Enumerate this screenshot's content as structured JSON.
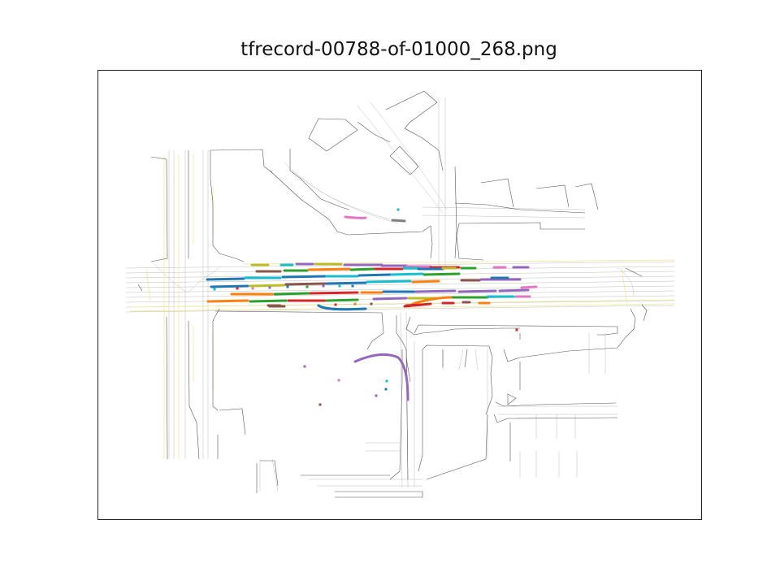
{
  "figure": {
    "title": "tfrecord-00788-of-01000_268.png"
  },
  "map_layers": {
    "road_edge_color": "#555555",
    "lane_color": "#bdbdbd",
    "road_line_color": "#efe58a"
  },
  "agent_colors": [
    "#1f77b4",
    "#ff7f0e",
    "#2ca02c",
    "#d62728",
    "#9467bd",
    "#8c564b",
    "#e377c2",
    "#7f7f7f",
    "#bcbd22",
    "#17becf"
  ]
}
